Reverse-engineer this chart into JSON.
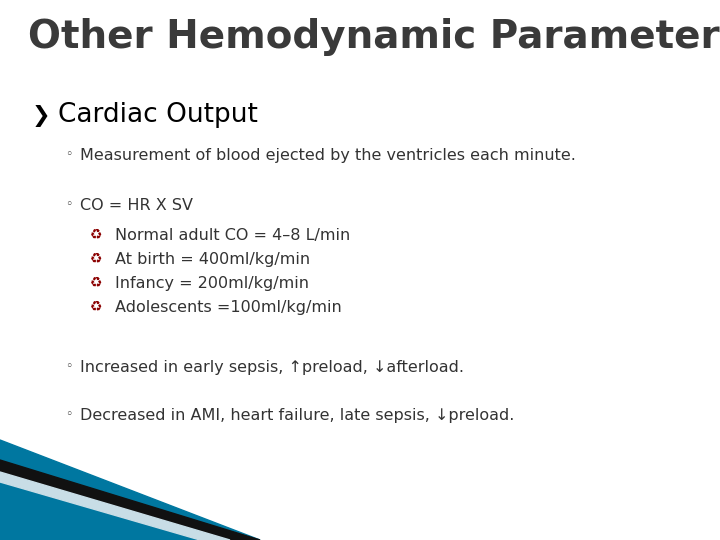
{
  "title": "Other Hemodynamic Parameters",
  "title_color": "#3a3a3a",
  "title_fontsize": 28,
  "background_color": "#ffffff",
  "bullet1_color": "#000000",
  "bullet1_fontsize": 19,
  "sub_bullet_color": "#333333",
  "sub_bullet_fontsize": 11.5,
  "sub_bullets": [
    "Measurement of blood ejected by the ventricles each minute.",
    "CO = HR X SV"
  ],
  "sub_sub_bullets": [
    "Normal adult CO = 4–8 L/min",
    "At birth = 400ml/kg/min",
    "Infancy = 200ml/kg/min",
    "Adolescents =100ml/kg/min"
  ],
  "sub_sub_bullet_color": "#333333",
  "sub_sub_bullet_icon_color": "#8B0000",
  "last_bullets": [
    "Increased in early sepsis, ↑preload, ↓afterload.",
    "Decreased in AMI, heart failure, late sepsis, ↓preload."
  ],
  "corner_teal": "#0077a0",
  "corner_dark": "#111111",
  "corner_light": "#c8dde6"
}
